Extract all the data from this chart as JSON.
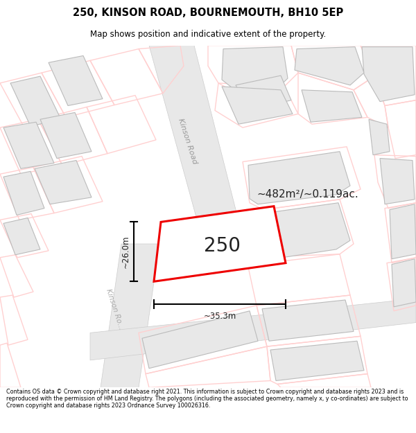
{
  "title_line1": "250, KINSON ROAD, BOURNEMOUTH, BH10 5EP",
  "title_line2": "Map shows position and indicative extent of the property.",
  "footer_text": "Contains OS data © Crown copyright and database right 2021. This information is subject to Crown copyright and database rights 2023 and is reproduced with the permission of HM Land Registry. The polygons (including the associated geometry, namely x, y co-ordinates) are subject to Crown copyright and database rights 2023 Ordnance Survey 100026316.",
  "background_color": "#ffffff",
  "map_bg_color": "#ffffff",
  "building_color": "#e8e8e8",
  "building_outline": "#bbbbbb",
  "parcel_color": "#ffd0d0",
  "red_line_color": "#ee0000",
  "property_label": "250",
  "area_label": "~482m²/~0.119ac.",
  "width_label": "~35.3m",
  "height_label": "~26.0m",
  "road_label_upper": "Kinson Road",
  "road_label_lower": "Kinson Ro..."
}
